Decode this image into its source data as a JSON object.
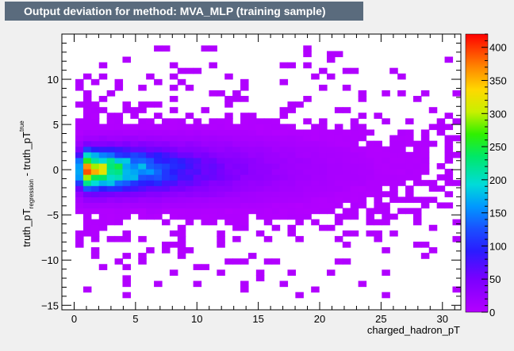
{
  "title": "Output deviation for method: MVA_MLP (training sample)",
  "colors": {
    "title_bg": "#5a6b7d",
    "title_fg": "#ffffff",
    "plot_bg": "#ffffff",
    "canvas_bg": "#f0f0f0"
  },
  "chart_data": {
    "type": "heatmap",
    "title": "Output deviation for method: MVA_MLP (training sample)",
    "xlabel": "charged_hadron_pT",
    "ylabel_main": "truth_pT",
    "ylabel_sub1": "regression",
    "ylabel_mid": " - truth_pT",
    "ylabel_sub2": "true",
    "xlim": [
      -1,
      31.5
    ],
    "ylim": [
      -15.5,
      15
    ],
    "x_ticks": [
      0,
      5,
      10,
      15,
      20,
      25,
      30
    ],
    "y_ticks": [
      -15,
      -10,
      -5,
      0,
      5,
      10
    ],
    "colorbar": {
      "range": [
        0,
        420
      ],
      "ticks": [
        0,
        50,
        100,
        150,
        200,
        250,
        300,
        350,
        400
      ],
      "palette": "rainbow (violet to red)"
    },
    "bins": {
      "x_width": 0.64,
      "y_width": 0.62
    },
    "grid": false,
    "legend": "none",
    "description": "2D histogram of regression output deviation vs charged hadron pT; dense core near deviation 0 with peak ~420 counts around pT 1-4"
  }
}
